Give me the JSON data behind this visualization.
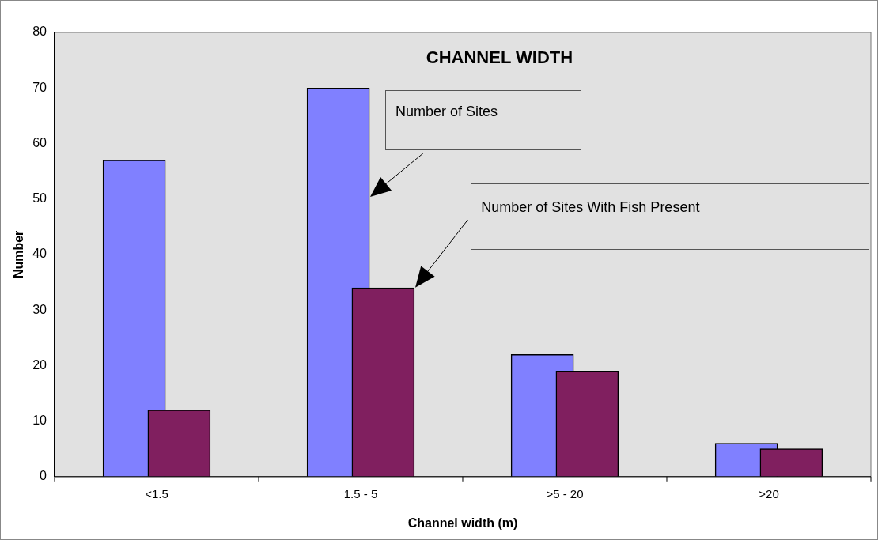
{
  "chart_data": {
    "type": "bar",
    "title": "CHANNEL WIDTH",
    "xlabel": "Channel width (m)",
    "ylabel": "Number",
    "categories": [
      "<1.5",
      "1.5 - 5",
      ">5 - 20",
      ">20"
    ],
    "series": [
      {
        "color": "#8080ff",
        "values": [
          57,
          70,
          22,
          6
        ]
      },
      {
        "color": "#801f5f",
        "values": [
          12,
          34,
          19,
          5
        ]
      }
    ],
    "annotations": [
      "Number of Sites",
      "Number of Sites With Fish Present"
    ],
    "ylim": [
      0,
      80
    ],
    "yticks": [
      0,
      10,
      20,
      30,
      40,
      50,
      60,
      70,
      80
    ],
    "grid": false,
    "legend": false
  }
}
